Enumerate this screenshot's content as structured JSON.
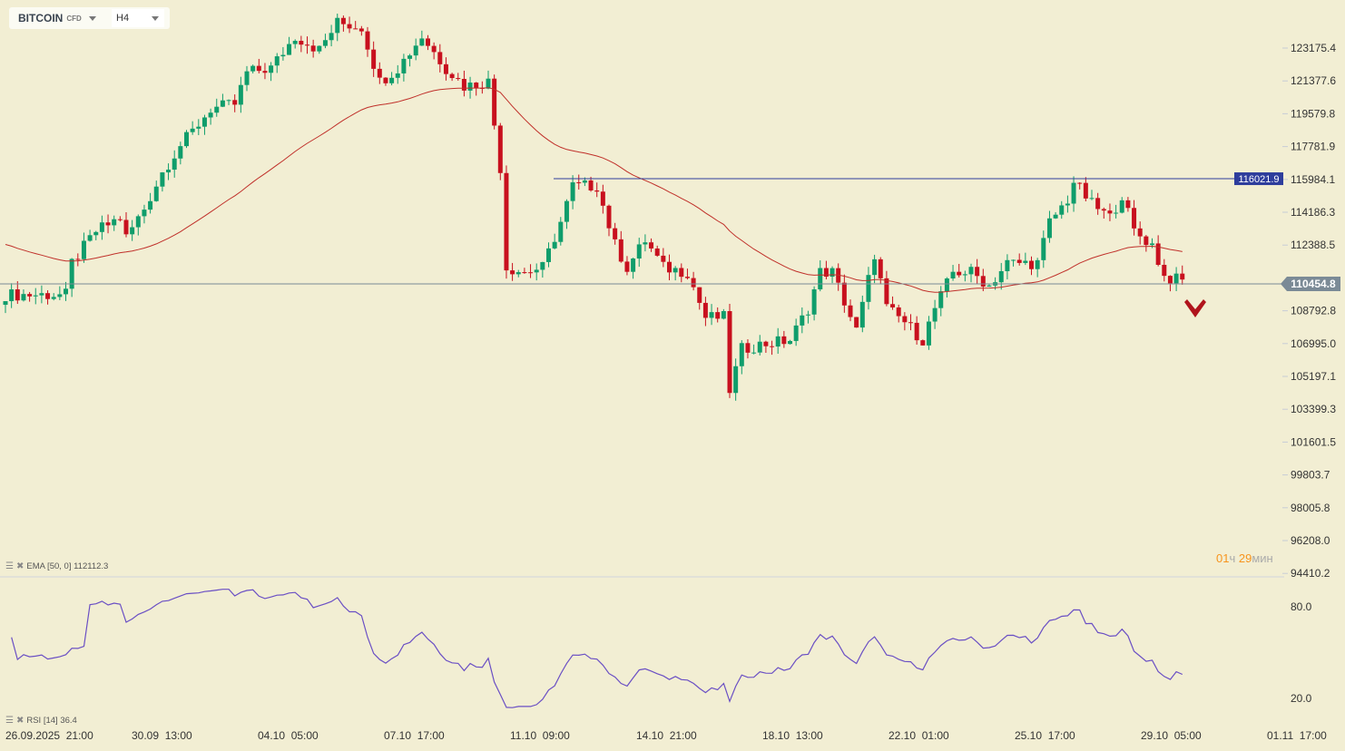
{
  "header": {
    "symbol": "BITCOIN",
    "symbol_type": "CFD",
    "timeframe": "H4"
  },
  "indicators": {
    "ema_label": "EMA [50, 0] 112112.3",
    "rsi_label": "RSI [14] 36.4"
  },
  "timer": {
    "hours": "01",
    "hours_unit": "ч",
    "minutes": "29",
    "minutes_unit": "мин"
  },
  "colors": {
    "up": "#0f9d6b",
    "down": "#c8101e",
    "ema": "#c0302a",
    "rsi": "#6a4fc4",
    "ref_line": "#2e3d9c",
    "price_line": "#7b8a96"
  },
  "chart_data": {
    "type": "candlestick",
    "symbol": "BITCOIN",
    "price_axis": {
      "labels": [
        "123175.4",
        "121377.6",
        "119579.8",
        "117781.9",
        "115984.1",
        "114186.3",
        "112388.5",
        "110454.8",
        "108792.8",
        "106995.0",
        "105197.1",
        "103399.3",
        "101601.5",
        "99803.7",
        "98005.8",
        "96208.0",
        "94410.2"
      ],
      "range": [
        94410.2,
        123175.4
      ]
    },
    "time_axis": {
      "labels": [
        "26.09.2025  21:00",
        "30.09  13:00",
        "04.10  05:00",
        "07.10  17:00",
        "11.10  09:00",
        "14.10  21:00",
        "18.10  13:00",
        "22.10  01:00",
        "25.10  17:00",
        "29.10  05:00",
        "01.11  17:00"
      ]
    },
    "candle_count": 196,
    "close_waypoints": [
      [
        0,
        109668
      ],
      [
        10,
        109668
      ],
      [
        11,
        111406
      ],
      [
        15,
        113144
      ],
      [
        19,
        113889
      ],
      [
        20,
        112796
      ],
      [
        23,
        114386
      ],
      [
        26,
        116372
      ],
      [
        29,
        117862
      ],
      [
        31,
        118607
      ],
      [
        34,
        119848
      ],
      [
        38,
        120097
      ],
      [
        40,
        121835
      ],
      [
        44,
        122083
      ],
      [
        48,
        123821
      ],
      [
        52,
        123076
      ],
      [
        55,
        124566
      ],
      [
        59,
        124318
      ],
      [
        62,
        121338
      ],
      [
        65,
        122083
      ],
      [
        69,
        123821
      ],
      [
        73,
        122083
      ],
      [
        76,
        121089
      ],
      [
        80,
        121338
      ],
      [
        82,
        116620
      ],
      [
        83,
        111158
      ],
      [
        86,
        110909
      ],
      [
        89,
        111158
      ],
      [
        92,
        113640
      ],
      [
        94,
        115627
      ],
      [
        98,
        115627
      ],
      [
        101,
        112399
      ],
      [
        103,
        111158
      ],
      [
        106,
        112647
      ],
      [
        109,
        111158
      ],
      [
        113,
        110909
      ],
      [
        116,
        108426
      ],
      [
        119,
        108426
      ],
      [
        120,
        104454
      ],
      [
        122,
        106689
      ],
      [
        125,
        106937
      ],
      [
        130,
        107185
      ],
      [
        133,
        108923
      ],
      [
        135,
        110909
      ],
      [
        137,
        110909
      ],
      [
        141,
        107682
      ],
      [
        144,
        111902
      ],
      [
        146,
        108923
      ],
      [
        149,
        108178
      ],
      [
        152,
        107185
      ],
      [
        154,
        108923
      ],
      [
        157,
        110909
      ],
      [
        160,
        110909
      ],
      [
        163,
        110164
      ],
      [
        166,
        111406
      ],
      [
        171,
        111406
      ],
      [
        173,
        113640
      ],
      [
        176,
        114882
      ],
      [
        177,
        115875
      ],
      [
        180,
        114634
      ],
      [
        183,
        113889
      ],
      [
        185,
        115131
      ],
      [
        187,
        113144
      ],
      [
        190,
        112399
      ],
      [
        192,
        110660
      ],
      [
        195,
        110413
      ]
    ],
    "ema": {
      "period": 50,
      "last": 112112.3
    },
    "rsi": {
      "period": 14,
      "last": 36.4,
      "levels": [
        "80.0",
        "20.0"
      ]
    },
    "reference_line": {
      "price": 116021.9,
      "label": "116021.9"
    },
    "current_price": {
      "price": 110454.8,
      "label": "110454.8"
    }
  }
}
